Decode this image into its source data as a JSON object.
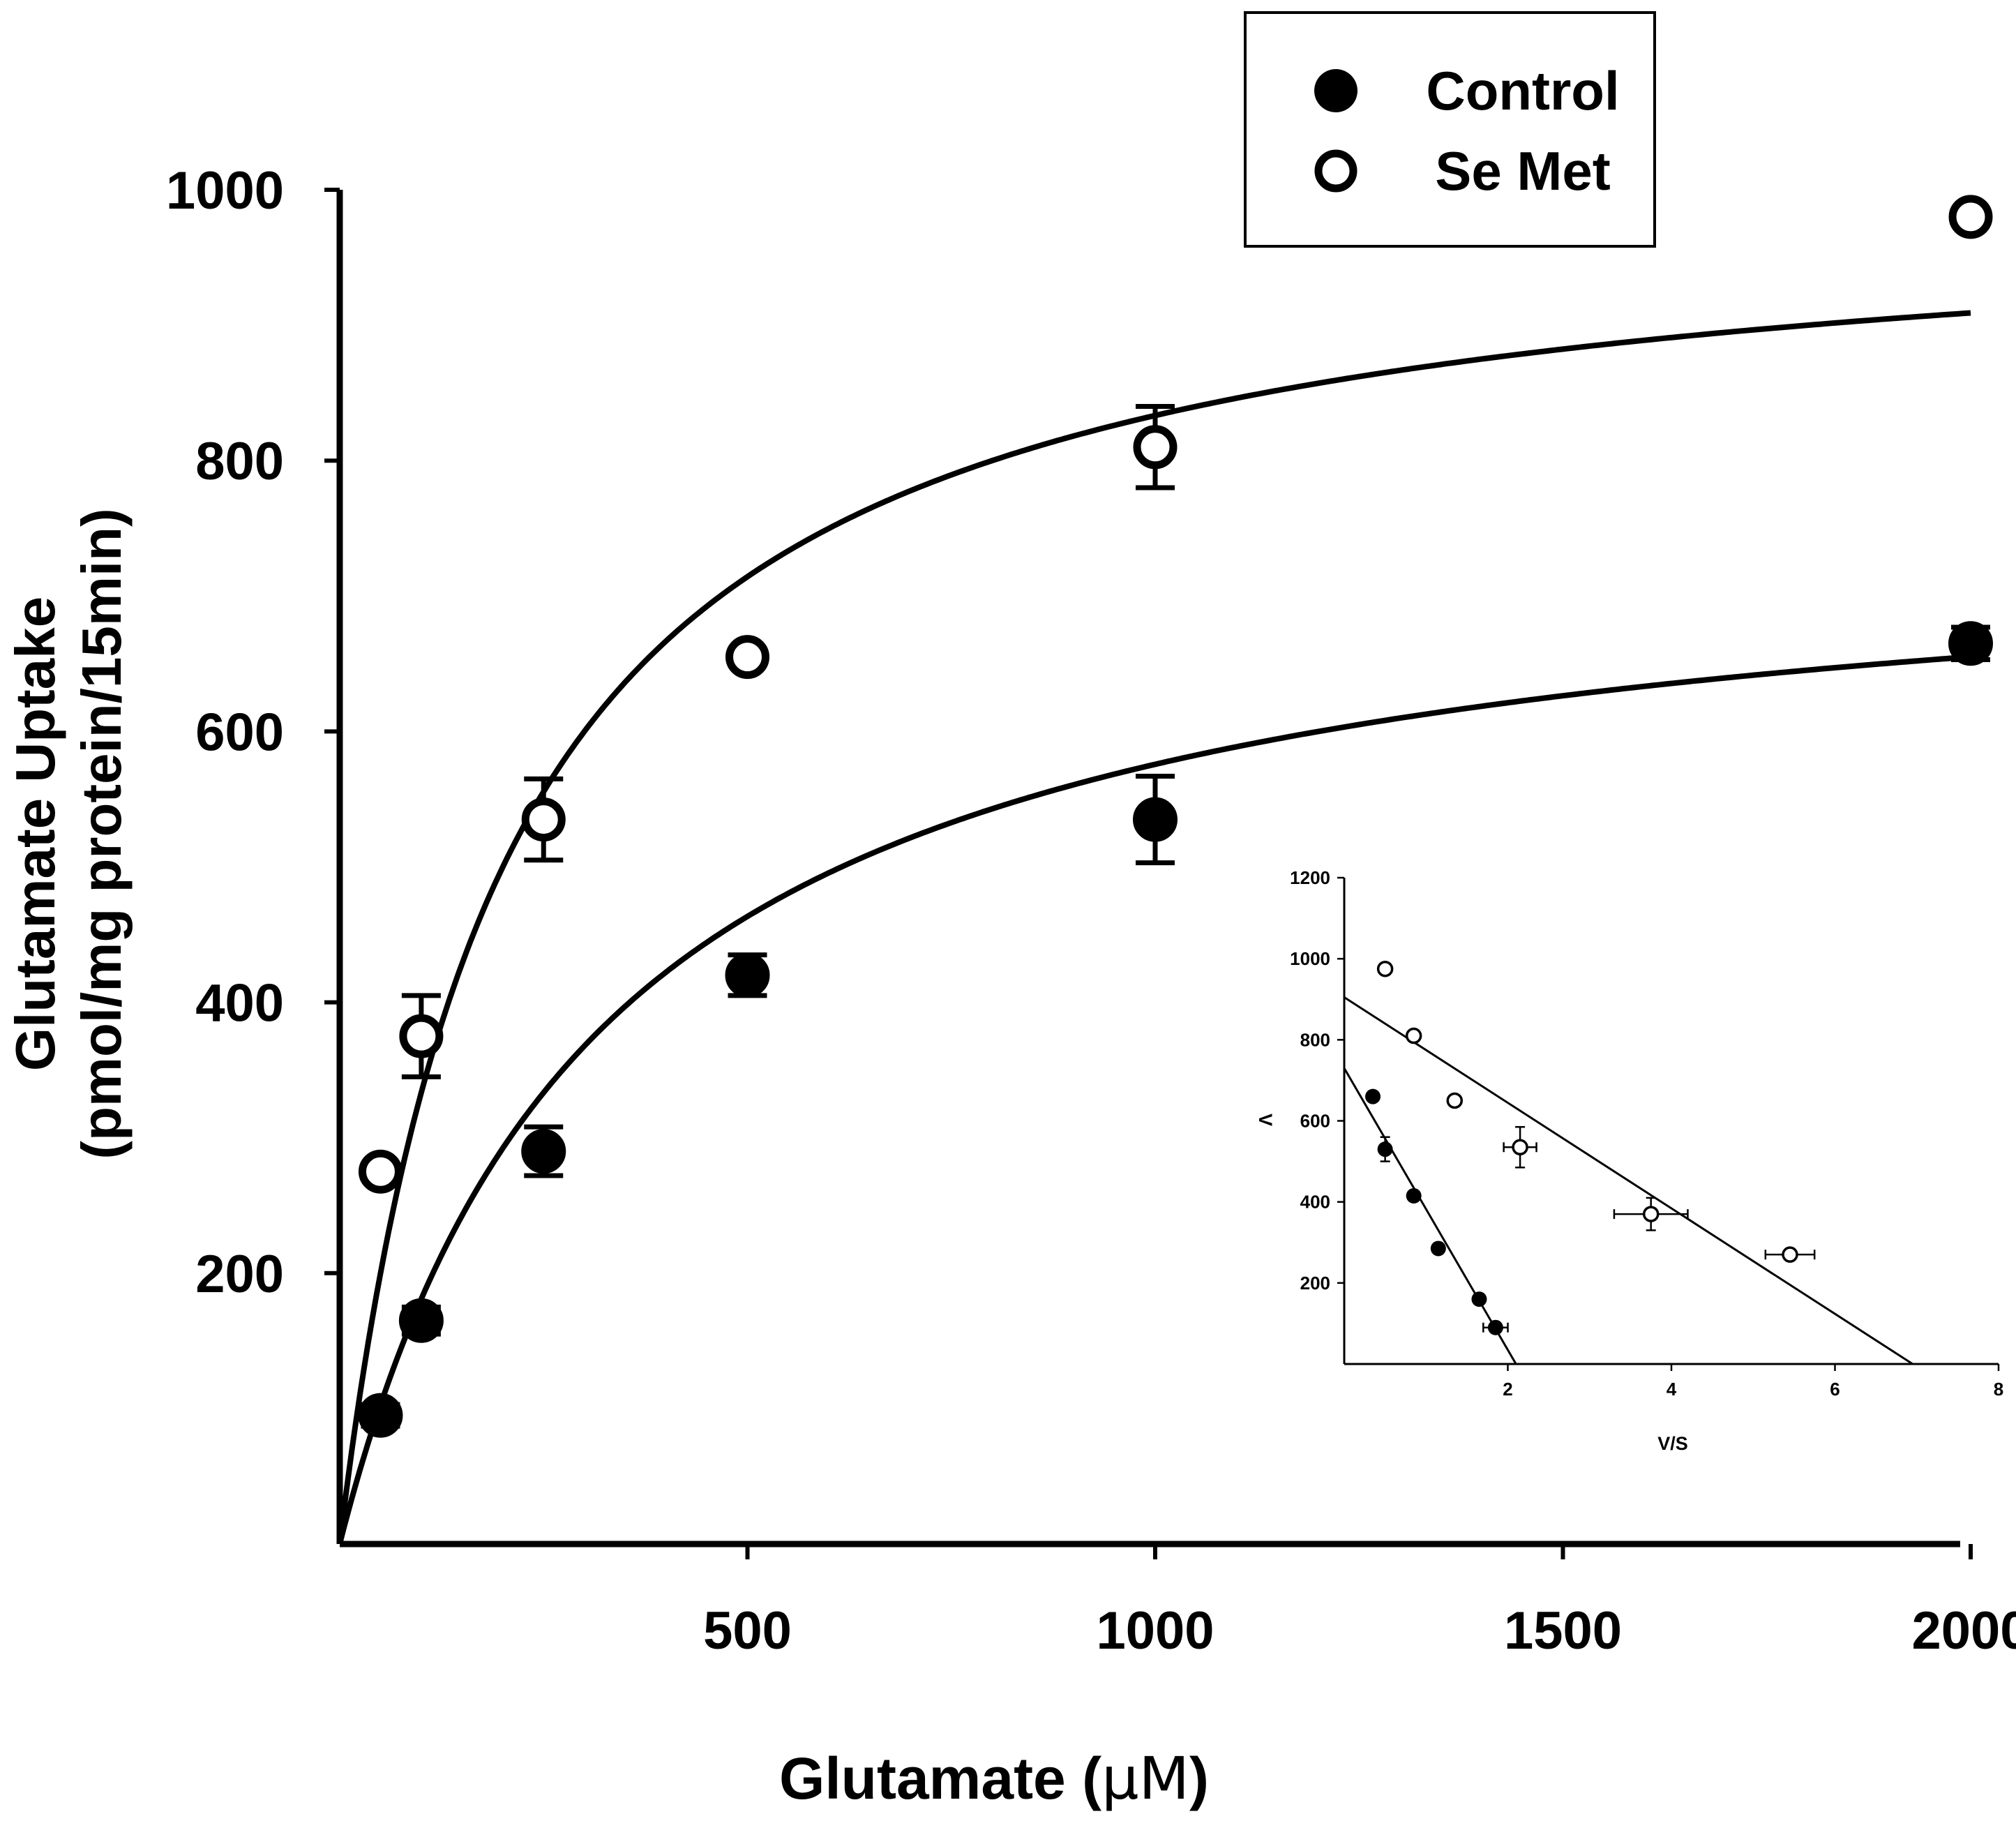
{
  "chart_data": [
    {
      "type": "scatter",
      "subtype": "michaelis-menten saturation curves with error bars",
      "title": "",
      "xlabel_prefix": "Glutamate (",
      "xlabel_unit": "μM",
      "xlabel_suffix": ")",
      "ylabel_line1": "Glutamate Uptake",
      "ylabel_line2": "(pmol/mg protein/15min)",
      "xlim": [
        0,
        2000
      ],
      "ylim": [
        0,
        1000
      ],
      "xticks": [
        500,
        1000,
        1500,
        2000
      ],
      "xtick_labels": [
        "500",
        "1000",
        "1500",
        "2000"
      ],
      "yticks": [
        200,
        400,
        600,
        800,
        1000
      ],
      "ytick_labels": [
        "200",
        "400",
        "600",
        "800",
        "1000"
      ],
      "legend_position": "top-right",
      "series": [
        {
          "name": "Control",
          "marker": "filled-circle",
          "color": "#000000",
          "x": [
            50,
            100,
            250,
            500,
            1000,
            2000
          ],
          "y": [
            95,
            165,
            290,
            420,
            535,
            665
          ],
          "err": [
            8,
            10,
            18,
            15,
            32,
            12
          ],
          "fit": {
            "Vmax": 760,
            "Km": 320
          }
        },
        {
          "name": "Se Met",
          "marker": "open-circle",
          "color": "#000000",
          "x": [
            50,
            100,
            250,
            500,
            1000,
            2000
          ],
          "y": [
            275,
            375,
            535,
            655,
            810,
            980
          ],
          "err": [
            5,
            30,
            30,
            5,
            30,
            5
          ],
          "fit": {
            "Vmax": 1000,
            "Km": 200
          }
        }
      ]
    },
    {
      "type": "scatter",
      "subtype": "Eadie-Hofstee inset",
      "title": "",
      "xlabel": "V/S",
      "ylabel": "V",
      "xlim": [
        0,
        8
      ],
      "ylim": [
        0,
        1200
      ],
      "xticks": [
        2,
        4,
        6,
        8
      ],
      "xtick_labels": [
        "2",
        "4",
        "6",
        "8"
      ],
      "yticks": [
        200,
        400,
        600,
        800,
        1000,
        1200
      ],
      "ytick_labels": [
        "200",
        "400",
        "600",
        "800",
        "1000",
        "1200"
      ],
      "series": [
        {
          "name": "Control",
          "marker": "filled-circle",
          "x": [
            0.35,
            0.5,
            0.85,
            1.15,
            1.65,
            1.85
          ],
          "y": [
            660,
            530,
            415,
            285,
            160,
            90
          ],
          "xerr": [
            0,
            0,
            0,
            0,
            0,
            0.15
          ],
          "yerr": [
            0,
            30,
            0,
            0,
            0,
            0
          ],
          "line": [
            [
              0,
              730
            ],
            [
              2.1,
              0
            ]
          ]
        },
        {
          "name": "Se Met",
          "marker": "open-circle",
          "x": [
            0.5,
            0.85,
            1.35,
            2.15,
            3.75,
            5.45
          ],
          "y": [
            975,
            810,
            650,
            535,
            370,
            270
          ],
          "xerr": [
            0,
            0,
            0,
            0.2,
            0.45,
            0.3
          ],
          "yerr": [
            0,
            0,
            0,
            50,
            40,
            10
          ],
          "line": [
            [
              0,
              905
            ],
            [
              6.95,
              0
            ]
          ]
        }
      ]
    }
  ]
}
